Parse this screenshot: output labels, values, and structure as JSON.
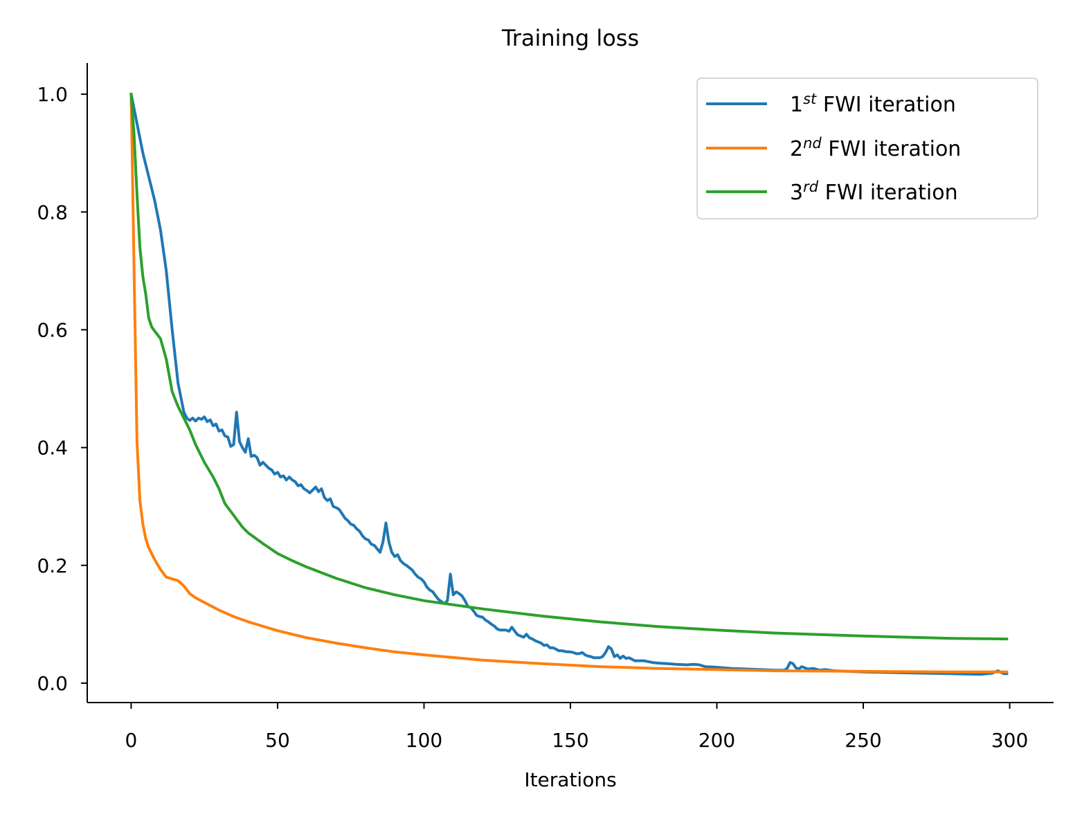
{
  "chart_data": {
    "type": "line",
    "title": "Training loss",
    "xlabel": "Iterations",
    "ylabel": "",
    "xlim": [
      -15,
      315
    ],
    "ylim": [
      -0.033,
      1.053
    ],
    "xticks": [
      0,
      50,
      100,
      150,
      200,
      250,
      300
    ],
    "xtick_labels": [
      "0",
      "50",
      "100",
      "150",
      "200",
      "250",
      "300"
    ],
    "yticks": [
      0.0,
      0.2,
      0.4,
      0.6,
      0.8,
      1.0
    ],
    "ytick_labels": [
      "0.0",
      "0.2",
      "0.4",
      "0.6",
      "0.8",
      "1.0"
    ],
    "grid": false,
    "legend_position": "top-right",
    "series": [
      {
        "name_base": "1",
        "name_sup": "st",
        "name_rest": " FWI iteration",
        "color": "#1f77b4",
        "points": [
          [
            0,
            1.0
          ],
          [
            4,
            0.9
          ],
          [
            8,
            0.82
          ],
          [
            10,
            0.77
          ],
          [
            12,
            0.7
          ],
          [
            14,
            0.6
          ],
          [
            16,
            0.51
          ],
          [
            18,
            0.46
          ],
          [
            19,
            0.45
          ],
          [
            20,
            0.446
          ],
          [
            21,
            0.45
          ],
          [
            22,
            0.445
          ],
          [
            23,
            0.45
          ],
          [
            24,
            0.448
          ],
          [
            25,
            0.452
          ],
          [
            26,
            0.444
          ],
          [
            27,
            0.447
          ],
          [
            28,
            0.437
          ],
          [
            29,
            0.44
          ],
          [
            30,
            0.428
          ],
          [
            31,
            0.43
          ],
          [
            32,
            0.42
          ],
          [
            33,
            0.418
          ],
          [
            34,
            0.402
          ],
          [
            35,
            0.405
          ],
          [
            36,
            0.46
          ],
          [
            37,
            0.41
          ],
          [
            38,
            0.4
          ],
          [
            39,
            0.392
          ],
          [
            40,
            0.415
          ],
          [
            41,
            0.385
          ],
          [
            42,
            0.387
          ],
          [
            43,
            0.383
          ],
          [
            44,
            0.37
          ],
          [
            45,
            0.375
          ],
          [
            47,
            0.365
          ],
          [
            48,
            0.362
          ],
          [
            49,
            0.355
          ],
          [
            50,
            0.358
          ],
          [
            51,
            0.35
          ],
          [
            52,
            0.352
          ],
          [
            53,
            0.345
          ],
          [
            54,
            0.35
          ],
          [
            55,
            0.345
          ],
          [
            56,
            0.342
          ],
          [
            57,
            0.335
          ],
          [
            58,
            0.337
          ],
          [
            59,
            0.33
          ],
          [
            60,
            0.327
          ],
          [
            61,
            0.323
          ],
          [
            62,
            0.328
          ],
          [
            63,
            0.333
          ],
          [
            64,
            0.325
          ],
          [
            65,
            0.33
          ],
          [
            66,
            0.315
          ],
          [
            67,
            0.31
          ],
          [
            68,
            0.313
          ],
          [
            69,
            0.3
          ],
          [
            70,
            0.298
          ],
          [
            71,
            0.295
          ],
          [
            72,
            0.288
          ],
          [
            73,
            0.28
          ],
          [
            74,
            0.276
          ],
          [
            75,
            0.27
          ],
          [
            76,
            0.268
          ],
          [
            77,
            0.262
          ],
          [
            78,
            0.258
          ],
          [
            79,
            0.25
          ],
          [
            80,
            0.245
          ],
          [
            81,
            0.243
          ],
          [
            82,
            0.236
          ],
          [
            83,
            0.234
          ],
          [
            84,
            0.228
          ],
          [
            85,
            0.222
          ],
          [
            86,
            0.24
          ],
          [
            87,
            0.272
          ],
          [
            88,
            0.24
          ],
          [
            89,
            0.222
          ],
          [
            90,
            0.215
          ],
          [
            91,
            0.218
          ],
          [
            92,
            0.208
          ],
          [
            93,
            0.203
          ],
          [
            94,
            0.2
          ],
          [
            95,
            0.196
          ],
          [
            96,
            0.192
          ],
          [
            97,
            0.185
          ],
          [
            98,
            0.18
          ],
          [
            99,
            0.177
          ],
          [
            100,
            0.172
          ],
          [
            101,
            0.163
          ],
          [
            102,
            0.158
          ],
          [
            103,
            0.155
          ],
          [
            104,
            0.148
          ],
          [
            105,
            0.142
          ],
          [
            106,
            0.138
          ],
          [
            107,
            0.135
          ],
          [
            108,
            0.14
          ],
          [
            109,
            0.185
          ],
          [
            110,
            0.15
          ],
          [
            111,
            0.155
          ],
          [
            112,
            0.152
          ],
          [
            113,
            0.148
          ],
          [
            114,
            0.14
          ],
          [
            115,
            0.13
          ],
          [
            116,
            0.128
          ],
          [
            117,
            0.122
          ],
          [
            118,
            0.115
          ],
          [
            119,
            0.113
          ],
          [
            120,
            0.112
          ],
          [
            121,
            0.107
          ],
          [
            122,
            0.104
          ],
          [
            123,
            0.1
          ],
          [
            124,
            0.097
          ],
          [
            125,
            0.092
          ],
          [
            126,
            0.09
          ],
          [
            127,
            0.09
          ],
          [
            128,
            0.09
          ],
          [
            129,
            0.088
          ],
          [
            130,
            0.095
          ],
          [
            131,
            0.088
          ],
          [
            132,
            0.082
          ],
          [
            133,
            0.08
          ],
          [
            134,
            0.078
          ],
          [
            135,
            0.083
          ],
          [
            136,
            0.077
          ],
          [
            137,
            0.075
          ],
          [
            138,
            0.072
          ],
          [
            139,
            0.07
          ],
          [
            140,
            0.068
          ],
          [
            141,
            0.064
          ],
          [
            142,
            0.065
          ],
          [
            143,
            0.06
          ],
          [
            144,
            0.06
          ],
          [
            145,
            0.058
          ],
          [
            146,
            0.055
          ],
          [
            147,
            0.055
          ],
          [
            148,
            0.054
          ],
          [
            149,
            0.053
          ],
          [
            150,
            0.053
          ],
          [
            151,
            0.052
          ],
          [
            152,
            0.05
          ],
          [
            153,
            0.05
          ],
          [
            154,
            0.052
          ],
          [
            155,
            0.048
          ],
          [
            156,
            0.046
          ],
          [
            157,
            0.045
          ],
          [
            158,
            0.043
          ],
          [
            159,
            0.043
          ],
          [
            160,
            0.043
          ],
          [
            161,
            0.045
          ],
          [
            162,
            0.052
          ],
          [
            163,
            0.062
          ],
          [
            164,
            0.058
          ],
          [
            165,
            0.045
          ],
          [
            166,
            0.048
          ],
          [
            167,
            0.042
          ],
          [
            168,
            0.046
          ],
          [
            169,
            0.042
          ],
          [
            170,
            0.043
          ],
          [
            172,
            0.038
          ],
          [
            175,
            0.038
          ],
          [
            178,
            0.035
          ],
          [
            180,
            0.034
          ],
          [
            183,
            0.033
          ],
          [
            186,
            0.032
          ],
          [
            190,
            0.031
          ],
          [
            192,
            0.032
          ],
          [
            194,
            0.031
          ],
          [
            196,
            0.028
          ],
          [
            200,
            0.027
          ],
          [
            205,
            0.025
          ],
          [
            210,
            0.024
          ],
          [
            215,
            0.023
          ],
          [
            220,
            0.022
          ],
          [
            223,
            0.022
          ],
          [
            224,
            0.025
          ],
          [
            225,
            0.035
          ],
          [
            226,
            0.033
          ],
          [
            227,
            0.026
          ],
          [
            228,
            0.024
          ],
          [
            229,
            0.028
          ],
          [
            231,
            0.024
          ],
          [
            233,
            0.025
          ],
          [
            235,
            0.022
          ],
          [
            237,
            0.023
          ],
          [
            240,
            0.021
          ],
          [
            245,
            0.02
          ],
          [
            250,
            0.019
          ],
          [
            260,
            0.018
          ],
          [
            270,
            0.017
          ],
          [
            280,
            0.016
          ],
          [
            290,
            0.015
          ],
          [
            294,
            0.017
          ],
          [
            296,
            0.021
          ],
          [
            298,
            0.016
          ],
          [
            299,
            0.016
          ]
        ]
      },
      {
        "name_base": "2",
        "name_sup": "nd",
        "name_rest": " FWI iteration",
        "color": "#ff7f0e",
        "points": [
          [
            0,
            1.0
          ],
          [
            1,
            0.7
          ],
          [
            2,
            0.41
          ],
          [
            3,
            0.31
          ],
          [
            4,
            0.27
          ],
          [
            5,
            0.245
          ],
          [
            6,
            0.23
          ],
          [
            8,
            0.21
          ],
          [
            10,
            0.193
          ],
          [
            12,
            0.18
          ],
          [
            14,
            0.177
          ],
          [
            16,
            0.174
          ],
          [
            18,
            0.165
          ],
          [
            20,
            0.152
          ],
          [
            22,
            0.145
          ],
          [
            25,
            0.137
          ],
          [
            30,
            0.124
          ],
          [
            35,
            0.113
          ],
          [
            40,
            0.104
          ],
          [
            50,
            0.089
          ],
          [
            60,
            0.077
          ],
          [
            70,
            0.068
          ],
          [
            80,
            0.06
          ],
          [
            90,
            0.053
          ],
          [
            100,
            0.048
          ],
          [
            120,
            0.039
          ],
          [
            140,
            0.033
          ],
          [
            160,
            0.028
          ],
          [
            180,
            0.025
          ],
          [
            200,
            0.023
          ],
          [
            220,
            0.021
          ],
          [
            250,
            0.02
          ],
          [
            280,
            0.019
          ],
          [
            299,
            0.019
          ]
        ]
      },
      {
        "name_base": "3",
        "name_sup": "rd",
        "name_rest": " FWI iteration",
        "color": "#2ca02c",
        "points": [
          [
            0,
            1.0
          ],
          [
            1,
            0.93
          ],
          [
            2,
            0.83
          ],
          [
            3,
            0.74
          ],
          [
            4,
            0.69
          ],
          [
            5,
            0.66
          ],
          [
            6,
            0.62
          ],
          [
            7,
            0.605
          ],
          [
            8,
            0.598
          ],
          [
            10,
            0.585
          ],
          [
            12,
            0.55
          ],
          [
            14,
            0.495
          ],
          [
            16,
            0.47
          ],
          [
            18,
            0.45
          ],
          [
            20,
            0.43
          ],
          [
            22,
            0.405
          ],
          [
            25,
            0.375
          ],
          [
            28,
            0.35
          ],
          [
            30,
            0.33
          ],
          [
            32,
            0.305
          ],
          [
            35,
            0.285
          ],
          [
            38,
            0.265
          ],
          [
            40,
            0.255
          ],
          [
            45,
            0.237
          ],
          [
            50,
            0.22
          ],
          [
            55,
            0.208
          ],
          [
            60,
            0.197
          ],
          [
            70,
            0.178
          ],
          [
            80,
            0.162
          ],
          [
            90,
            0.15
          ],
          [
            100,
            0.14
          ],
          [
            120,
            0.126
          ],
          [
            140,
            0.114
          ],
          [
            160,
            0.104
          ],
          [
            180,
            0.096
          ],
          [
            200,
            0.09
          ],
          [
            220,
            0.085
          ],
          [
            250,
            0.08
          ],
          [
            280,
            0.076
          ],
          [
            299,
            0.075
          ]
        ]
      }
    ]
  }
}
